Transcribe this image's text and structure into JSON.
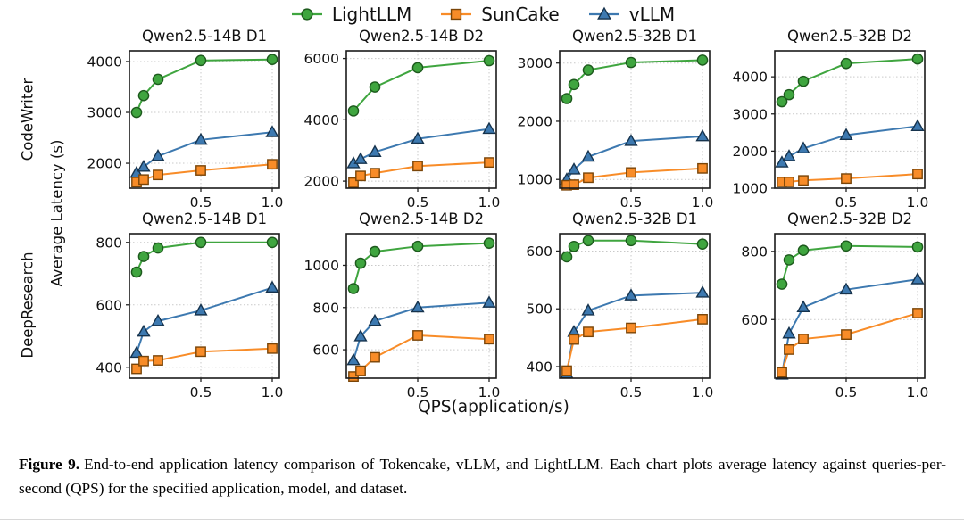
{
  "figure": {
    "legend": [
      {
        "label": "LightLLM",
        "marker": "circle",
        "color": "#3fa53f",
        "edge_color": "#1d5a1d"
      },
      {
        "label": "SunCake",
        "marker": "square",
        "color": "#f88c28",
        "edge_color": "#7a4508"
      },
      {
        "label": "vLLM",
        "marker": "triangle",
        "color": "#3d79b0",
        "edge_color": "#16334d"
      }
    ],
    "row_labels": [
      "CodeWriter",
      "DeepResearch"
    ],
    "shared_ylabel": "Average Latency (s)",
    "shared_xlabel": "QPS(application/s)"
  },
  "chart_data": [
    {
      "type": "line",
      "title": "Qwen2.5-14B D1",
      "application": "CodeWriter",
      "xlabel": "QPS(application/s)",
      "ylabel": "Average Latency (s)",
      "grid": true,
      "xlim": [
        0,
        1.05
      ],
      "ylim": [
        1510,
        4210
      ],
      "xticks": [
        0.5,
        1.0
      ],
      "yticks": [
        2000,
        3000,
        4000
      ],
      "series": [
        {
          "name": "LightLLM",
          "x": [
            0.05,
            0.1,
            0.2,
            0.5,
            1.0
          ],
          "y": [
            3000,
            3330,
            3650,
            4020,
            4040
          ]
        },
        {
          "name": "vLLM",
          "x": [
            0.05,
            0.1,
            0.2,
            0.5,
            1.0
          ],
          "y": [
            1810,
            1930,
            2140,
            2460,
            2610
          ]
        },
        {
          "name": "SunCake",
          "x": [
            0.05,
            0.1,
            0.2,
            0.5,
            1.0
          ],
          "y": [
            1630,
            1680,
            1770,
            1860,
            1980
          ]
        }
      ]
    },
    {
      "type": "line",
      "title": "Qwen2.5-14B D2",
      "application": "CodeWriter",
      "xlabel": "QPS(application/s)",
      "ylabel": "Average Latency (s)",
      "grid": true,
      "xlim": [
        0,
        1.05
      ],
      "ylim": [
        1770,
        6250
      ],
      "xticks": [
        0.5,
        1.0
      ],
      "yticks": [
        2000,
        4000,
        6000
      ],
      "series": [
        {
          "name": "LightLLM",
          "x": [
            0.05,
            0.2,
            0.5,
            1.0
          ],
          "y": [
            4290,
            5070,
            5700,
            5930
          ]
        },
        {
          "name": "vLLM",
          "x": [
            0.05,
            0.1,
            0.2,
            0.5,
            1.0
          ],
          "y": [
            2580,
            2720,
            2950,
            3380,
            3700
          ]
        },
        {
          "name": "SunCake",
          "x": [
            0.05,
            0.1,
            0.2,
            0.5,
            1.0
          ],
          "y": [
            1950,
            2170,
            2260,
            2490,
            2610
          ]
        }
      ]
    },
    {
      "type": "line",
      "title": "Qwen2.5-32B D1",
      "application": "CodeWriter",
      "xlabel": "QPS(application/s)",
      "ylabel": "Average Latency (s)",
      "grid": true,
      "xlim": [
        0,
        1.05
      ],
      "ylim": [
        850,
        3210
      ],
      "xticks": [
        0.5,
        1.0
      ],
      "yticks": [
        1000,
        2000,
        3000
      ],
      "series": [
        {
          "name": "LightLLM",
          "x": [
            0.05,
            0.1,
            0.2,
            0.5,
            1.0
          ],
          "y": [
            2390,
            2630,
            2880,
            3010,
            3050
          ]
        },
        {
          "name": "vLLM",
          "x": [
            0.05,
            0.1,
            0.2,
            0.5,
            1.0
          ],
          "y": [
            1000,
            1170,
            1390,
            1660,
            1740
          ]
        },
        {
          "name": "SunCake",
          "x": [
            0.05,
            0.1,
            0.2,
            0.5,
            1.0
          ],
          "y": [
            900,
            910,
            1030,
            1120,
            1190
          ]
        }
      ]
    },
    {
      "type": "line",
      "title": "Qwen2.5-32B D2",
      "application": "CodeWriter",
      "xlabel": "QPS(application/s)",
      "ylabel": "Average Latency (s)",
      "grid": true,
      "xlim": [
        0,
        1.05
      ],
      "ylim": [
        1000,
        4700
      ],
      "xticks": [
        0.5,
        1.0
      ],
      "yticks": [
        1000,
        2000,
        3000,
        4000
      ],
      "series": [
        {
          "name": "LightLLM",
          "x": [
            0.05,
            0.1,
            0.2,
            0.5,
            1.0
          ],
          "y": [
            3330,
            3520,
            3880,
            4360,
            4480
          ]
        },
        {
          "name": "vLLM",
          "x": [
            0.05,
            0.1,
            0.2,
            0.5,
            1.0
          ],
          "y": [
            1690,
            1860,
            2070,
            2430,
            2670
          ]
        },
        {
          "name": "SunCake",
          "x": [
            0.05,
            0.1,
            0.2,
            0.5,
            1.0
          ],
          "y": [
            1170,
            1170,
            1210,
            1260,
            1380
          ]
        }
      ]
    },
    {
      "type": "line",
      "title": "Qwen2.5-14B D1",
      "application": "DeepResearch",
      "xlabel": "QPS(application/s)",
      "ylabel": "Average Latency (s)",
      "grid": true,
      "xlim": [
        0,
        1.05
      ],
      "ylim": [
        365,
        828
      ],
      "xticks": [
        0.5,
        1.0
      ],
      "yticks": [
        400,
        600,
        800
      ],
      "series": [
        {
          "name": "LightLLM",
          "x": [
            0.05,
            0.1,
            0.2,
            0.5,
            1.0
          ],
          "y": [
            705,
            755,
            782,
            800,
            800
          ]
        },
        {
          "name": "vLLM",
          "x": [
            0.05,
            0.1,
            0.2,
            0.5,
            1.0
          ],
          "y": [
            446,
            514,
            548,
            582,
            655
          ]
        },
        {
          "name": "SunCake",
          "x": [
            0.05,
            0.1,
            0.2,
            0.5,
            1.0
          ],
          "y": [
            395,
            420,
            422,
            450,
            460
          ]
        }
      ]
    },
    {
      "type": "line",
      "title": "Qwen2.5-14B D2",
      "application": "DeepResearch",
      "xlabel": "QPS(application/s)",
      "ylabel": "Average Latency (s)",
      "grid": true,
      "xlim": [
        0,
        1.05
      ],
      "ylim": [
        465,
        1150
      ],
      "xticks": [
        0.5,
        1.0
      ],
      "yticks": [
        600,
        800,
        1000
      ],
      "series": [
        {
          "name": "LightLLM",
          "x": [
            0.05,
            0.1,
            0.2,
            0.5,
            1.0
          ],
          "y": [
            890,
            1010,
            1065,
            1090,
            1105
          ]
        },
        {
          "name": "vLLM",
          "x": [
            0.05,
            0.1,
            0.2,
            0.5,
            1.0
          ],
          "y": [
            550,
            663,
            736,
            800,
            823
          ]
        },
        {
          "name": "SunCake",
          "x": [
            0.05,
            0.1,
            0.2,
            0.5,
            1.0
          ],
          "y": [
            473,
            500,
            564,
            668,
            650
          ]
        }
      ]
    },
    {
      "type": "line",
      "title": "Qwen2.5-32B D1",
      "application": "DeepResearch",
      "xlabel": "QPS(application/s)",
      "ylabel": "Average Latency (s)",
      "grid": true,
      "xlim": [
        0,
        1.05
      ],
      "ylim": [
        380,
        630
      ],
      "xticks": [
        0.5,
        1.0
      ],
      "yticks": [
        400,
        500,
        600
      ],
      "series": [
        {
          "name": "LightLLM",
          "x": [
            0.05,
            0.1,
            0.2,
            0.5,
            1.0
          ],
          "y": [
            590,
            608,
            618,
            618,
            612
          ]
        },
        {
          "name": "vLLM",
          "x": [
            0.05,
            0.1,
            0.2,
            0.5,
            1.0
          ],
          "y": [
            388,
            460,
            497,
            523,
            528
          ]
        },
        {
          "name": "SunCake",
          "x": [
            0.05,
            0.1,
            0.2,
            0.5,
            1.0
          ],
          "y": [
            393,
            447,
            460,
            467,
            482
          ]
        }
      ]
    },
    {
      "type": "line",
      "title": "Qwen2.5-32B D2",
      "application": "DeepResearch",
      "xlabel": "QPS(application/s)",
      "ylabel": "Average Latency (s)",
      "grid": true,
      "xlim": [
        0,
        1.05
      ],
      "ylim": [
        428,
        852
      ],
      "xticks": [
        0.5,
        1.0
      ],
      "yticks": [
        600,
        800
      ],
      "series": [
        {
          "name": "LightLLM",
          "x": [
            0.05,
            0.1,
            0.2,
            0.5,
            1.0
          ],
          "y": [
            704,
            775,
            803,
            816,
            813
          ]
        },
        {
          "name": "vLLM",
          "x": [
            0.05,
            0.1,
            0.2,
            0.5,
            1.0
          ],
          "y": [
            438,
            559,
            636,
            688,
            718
          ]
        },
        {
          "name": "SunCake",
          "x": [
            0.05,
            0.1,
            0.2,
            0.5,
            1.0
          ],
          "y": [
            445,
            512,
            543,
            556,
            619
          ]
        }
      ]
    }
  ],
  "caption": {
    "label": "Figure 9.",
    "text": "End-to-end application latency comparison of Tokencake, vLLM, and LightLLM. Each chart plots average latency against queries-per-second (QPS) for the specified application, model, and dataset."
  }
}
